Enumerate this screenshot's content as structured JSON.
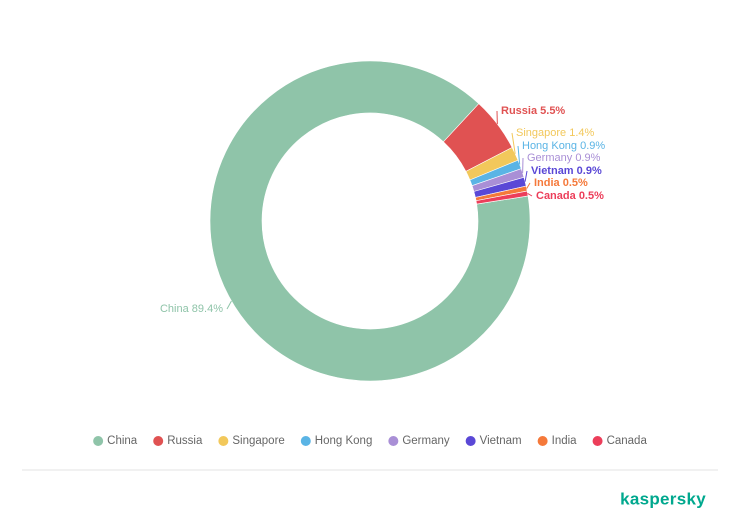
{
  "chart_data": {
    "type": "donut",
    "categories": [
      "China",
      "Russia",
      "Singapore",
      "Hong Kong",
      "Germany",
      "Vietnam",
      "India",
      "Canada"
    ],
    "values": [
      89.4,
      5.5,
      1.4,
      0.9,
      0.9,
      0.9,
      0.5,
      0.5
    ],
    "value_labels": [
      "89.4%",
      "5.5%",
      "1.4%",
      "0.9%",
      "0.9%",
      "0.9%",
      "0.5%",
      "0.5%"
    ],
    "colors": [
      "#8fc4a9",
      "#e05252",
      "#f2c85b",
      "#5ab4e5",
      "#a98fd6",
      "#5a48d6",
      "#f5793a",
      "#ec3e5a"
    ],
    "legend": "bottom"
  },
  "logo": "kaspersky"
}
